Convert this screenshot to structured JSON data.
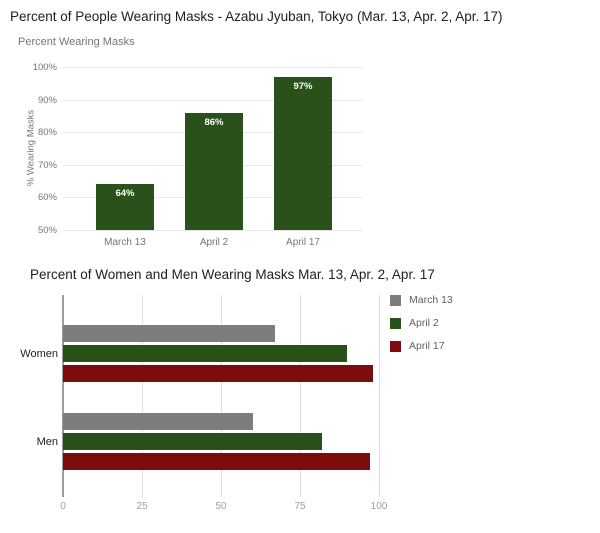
{
  "page": {
    "title1": "Percent of People Wearing Masks - Azabu Jyuban, Tokyo (Mar. 13, Apr. 2, Apr. 17)",
    "title2": "Percent of Women and Men Wearing Masks Mar. 13, Apr. 2, Apr. 17"
  },
  "colors": {
    "title_text": "#202124",
    "muted_text": "#757575",
    "faint_text": "#9e9e9e",
    "gridline": "#e6e6e6",
    "axis_line": "#9e9e9e",
    "background": "#ffffff",
    "bar_green": "#2b511a",
    "bar_gray": "#7d7d7d",
    "bar_dark_red": "#7d0d0d"
  },
  "chart_data": [
    {
      "type": "bar",
      "orientation": "vertical",
      "title": "Percent Wearing Masks",
      "xlabel": "",
      "ylabel": "% Wearing Masks",
      "categories": [
        "March 13",
        "April 2",
        "April 17"
      ],
      "values": [
        64,
        86,
        97
      ],
      "value_labels": [
        "64%",
        "86%",
        "97%"
      ],
      "ylim": [
        50,
        100
      ],
      "ytick_values": [
        50,
        60,
        70,
        80,
        90,
        100
      ],
      "ytick_labels": [
        "50%",
        "60%",
        "70%",
        "80%",
        "90%",
        "100%"
      ],
      "bar_color": "#2b511a",
      "grid": "horizontal",
      "legend": "none"
    },
    {
      "type": "bar",
      "orientation": "horizontal",
      "title": "",
      "xlabel": "",
      "ylabel": "",
      "categories": [
        "Women",
        "Men"
      ],
      "series": [
        {
          "name": "March 13",
          "color": "#7d7d7d",
          "values": [
            67,
            60
          ]
        },
        {
          "name": "April 2",
          "color": "#2b511a",
          "values": [
            90,
            82
          ]
        },
        {
          "name": "April 17",
          "color": "#7d0d0d",
          "values": [
            98,
            97
          ]
        }
      ],
      "xlim": [
        0,
        100
      ],
      "xtick_values": [
        0,
        25,
        50,
        75,
        100
      ],
      "xtick_labels": [
        "0",
        "25",
        "50",
        "75",
        "100"
      ],
      "grid": "vertical",
      "legend_position": "top-right"
    }
  ]
}
